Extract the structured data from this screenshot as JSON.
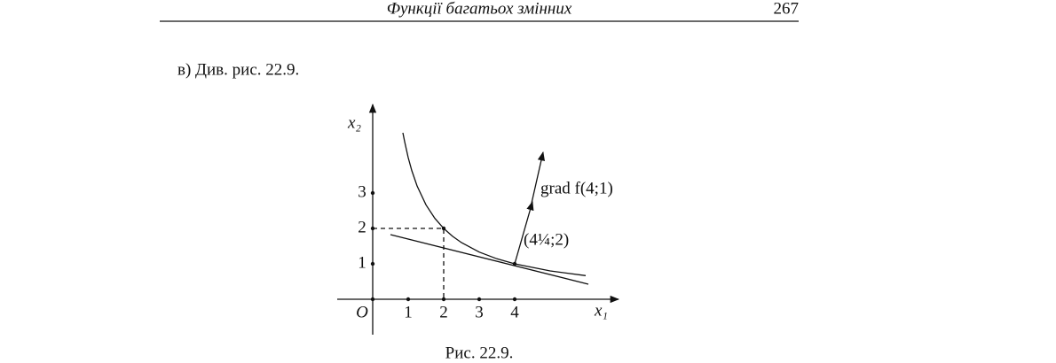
{
  "header": {
    "title": "Функції багатьох змінних",
    "page": "267"
  },
  "body": {
    "text": "в)  Див. рис. 22.9."
  },
  "figure": {
    "y_axis_label": "x₂",
    "x_axis_label": "x₁",
    "origin_label": "O",
    "y_ticks": [
      "1",
      "2",
      "3"
    ],
    "x_ticks": [
      "1",
      "2",
      "3",
      "4"
    ],
    "gradient_label": "grad f(4;1)",
    "point_label": "(4¼;2)",
    "caption": "Рис. 22.9."
  }
}
